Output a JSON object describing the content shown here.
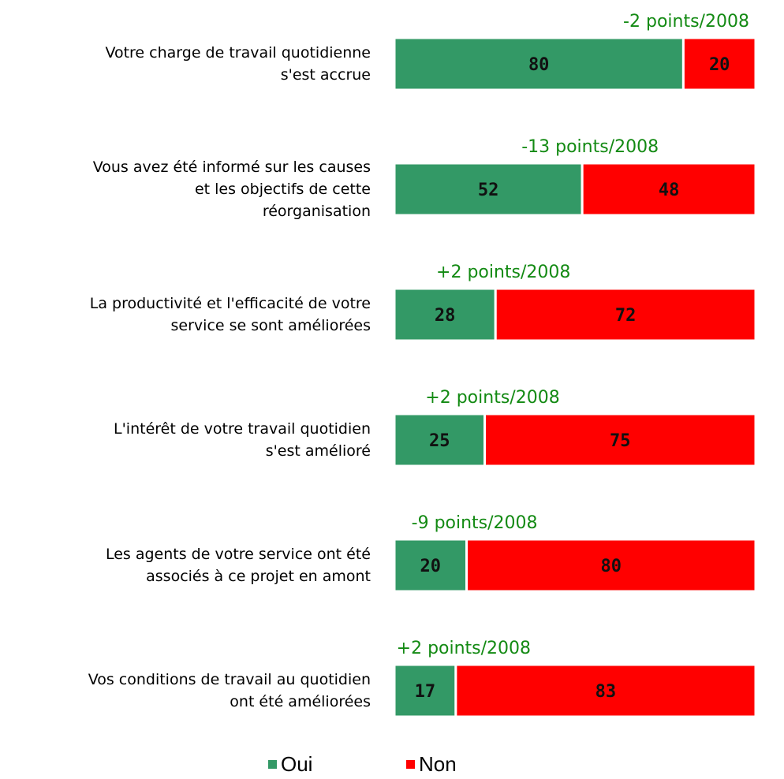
{
  "chart_data": {
    "type": "stacked_bar_horizontal",
    "categories": [
      "Votre charge de travail quotidienne\ns'est accrue",
      "Vous avez été informé sur les causes\net les objectifs de cette\nréorganisation",
      "La productivité et l'efficacité de votre\nservice se sont améliorées",
      "L'intérêt de votre travail quotidien\ns'est amélioré",
      "Les agents de votre service ont été\nassociés à ce projet en amont",
      "Vos conditions de travail au quotidien\nont été améliorées"
    ],
    "series": [
      {
        "name": "Oui",
        "color": "#339966",
        "values": [
          80,
          52,
          28,
          25,
          20,
          17
        ]
      },
      {
        "name": "Non",
        "color": "#ff0000",
        "values": [
          20,
          48,
          72,
          75,
          80,
          83
        ]
      }
    ],
    "annotations": [
      "-2 points/2008",
      "-13 points/2008",
      "+2 points/2008",
      "+2 points/2008",
      "-9 points/2008",
      "+2 points/2008"
    ],
    "annotation_color": "#138a13"
  }
}
